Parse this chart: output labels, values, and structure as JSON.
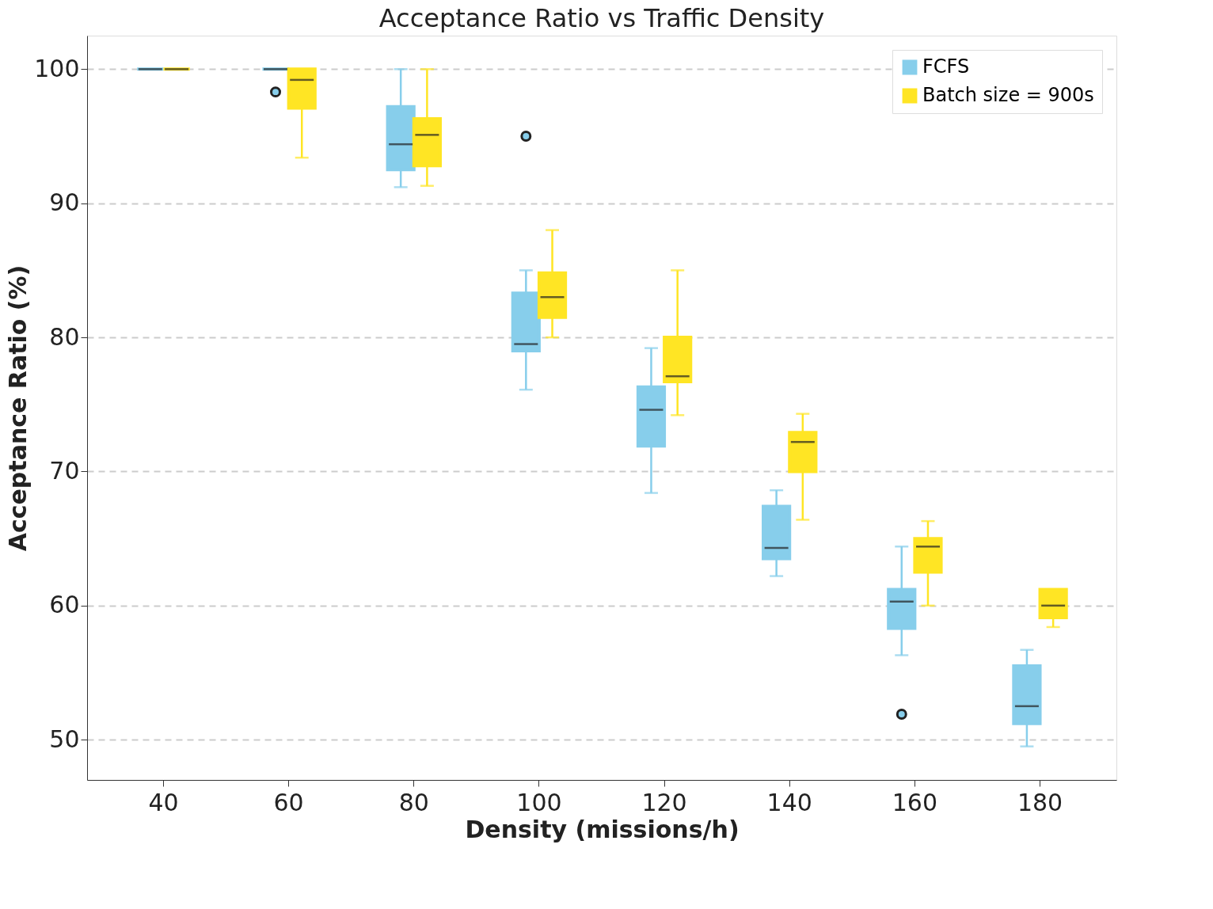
{
  "chart_data": {
    "type": "box",
    "title": "Acceptance Ratio vs Traffic Density",
    "xlabel": "Density (missions/h)",
    "ylabel": "Acceptance Ratio (%)",
    "categories": [
      "40",
      "60",
      "80",
      "100",
      "120",
      "140",
      "160",
      "180"
    ],
    "ylim": [
      47,
      102.5
    ],
    "yticks": [
      50,
      60,
      70,
      80,
      90,
      100
    ],
    "grid": "y",
    "legend": "top right",
    "series": [
      {
        "name": "FCFS",
        "color": "#87ceeb",
        "boxes": [
          {
            "low": 100,
            "q1": 100,
            "median": 100,
            "q3": 100,
            "high": 100
          },
          {
            "low": 100,
            "q1": 100,
            "median": 100,
            "q3": 100,
            "high": 100,
            "outliers": [
              98.3
            ]
          },
          {
            "low": 91.2,
            "q1": 92.5,
            "median": 94.4,
            "q3": 97.2,
            "high": 100
          },
          {
            "low": 76.1,
            "q1": 79.0,
            "median": 79.5,
            "q3": 83.3,
            "high": 85.0,
            "outliers": [
              95.0
            ]
          },
          {
            "low": 68.4,
            "q1": 71.9,
            "median": 74.6,
            "q3": 76.3,
            "high": 79.2
          },
          {
            "low": 62.2,
            "q1": 63.5,
            "median": 64.3,
            "q3": 67.4,
            "high": 68.6
          },
          {
            "low": 56.3,
            "q1": 58.3,
            "median": 60.3,
            "q3": 61.2,
            "high": 64.4,
            "outliers": [
              51.9
            ]
          },
          {
            "low": 49.5,
            "q1": 51.2,
            "median": 52.5,
            "q3": 55.5,
            "high": 56.7
          }
        ]
      },
      {
        "name": "Batch size = 900s",
        "color": "#ffe524",
        "boxes": [
          {
            "low": 100,
            "q1": 100,
            "median": 100,
            "q3": 100,
            "high": 100
          },
          {
            "low": 93.4,
            "q1": 97.1,
            "median": 99.2,
            "q3": 100,
            "high": 100
          },
          {
            "low": 91.3,
            "q1": 92.8,
            "median": 95.1,
            "q3": 96.3,
            "high": 100
          },
          {
            "low": 80.0,
            "q1": 81.5,
            "median": 83.0,
            "q3": 84.8,
            "high": 88.0
          },
          {
            "low": 74.2,
            "q1": 76.7,
            "median": 77.1,
            "q3": 80.0,
            "high": 85.0
          },
          {
            "low": 66.4,
            "q1": 70.0,
            "median": 72.2,
            "q3": 72.9,
            "high": 74.3
          },
          {
            "low": 60.0,
            "q1": 62.5,
            "median": 64.4,
            "q3": 65.0,
            "high": 66.3
          },
          {
            "low": 58.4,
            "q1": 59.1,
            "median": 60.0,
            "q3": 61.2,
            "high": 61.2
          }
        ]
      }
    ]
  }
}
